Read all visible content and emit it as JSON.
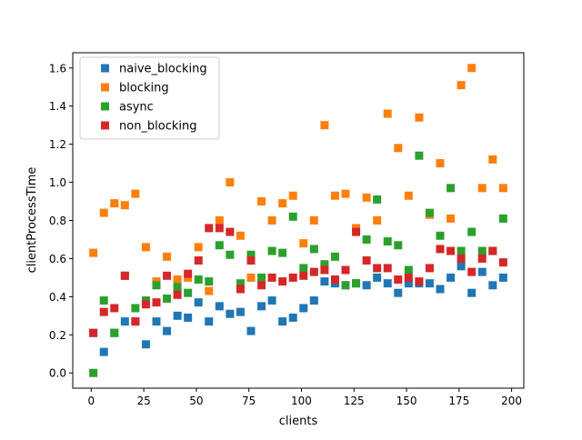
{
  "chart_data": {
    "type": "scatter",
    "xlabel": "clients",
    "ylabel": "clientProcessTime",
    "xlim": [
      -8.8,
      205.8
    ],
    "ylim": [
      -0.08,
      1.68
    ],
    "xticks": [
      0,
      25,
      50,
      75,
      100,
      125,
      150,
      175,
      200
    ],
    "yticks": [
      0.0,
      0.2,
      0.4,
      0.6,
      0.8,
      1.0,
      1.2,
      1.4,
      1.6
    ],
    "xtick_labels": [
      "0",
      "25",
      "50",
      "75",
      "100",
      "125",
      "150",
      "175",
      "200"
    ],
    "ytick_labels": [
      "0.0",
      "0.2",
      "0.4",
      "0.6",
      "0.8",
      "1.0",
      "1.2",
      "1.4",
      "1.6"
    ],
    "grid": false,
    "legend": {
      "placement": "top-left"
    },
    "x": [
      1,
      6,
      11,
      16,
      21,
      26,
      31,
      36,
      41,
      46,
      51,
      56,
      61,
      66,
      71,
      76,
      81,
      86,
      91,
      96,
      101,
      106,
      111,
      116,
      121,
      126,
      131,
      136,
      141,
      146,
      151,
      156,
      161,
      166,
      171,
      176,
      181,
      186,
      191,
      196
    ],
    "series": [
      {
        "name": "naive_blocking",
        "color": "#1f77b4",
        "values": [
          0.21,
          0.11,
          0.21,
          0.27,
          0.27,
          0.15,
          0.27,
          0.22,
          0.3,
          0.29,
          0.37,
          0.27,
          0.35,
          0.31,
          0.32,
          0.22,
          0.35,
          0.38,
          0.27,
          0.29,
          0.34,
          0.38,
          0.48,
          0.47,
          0.46,
          0.47,
          0.46,
          0.5,
          0.47,
          0.42,
          0.47,
          0.47,
          0.47,
          0.44,
          0.5,
          0.56,
          0.42,
          0.53,
          0.46,
          0.5
        ]
      },
      {
        "name": "blocking",
        "color": "#ff7f0e",
        "values": [
          0.63,
          0.84,
          0.89,
          0.88,
          0.94,
          0.66,
          0.48,
          0.61,
          0.49,
          0.5,
          0.66,
          0.43,
          0.8,
          1.0,
          0.72,
          0.5,
          0.9,
          0.8,
          0.89,
          0.93,
          0.68,
          0.8,
          1.3,
          0.93,
          0.94,
          0.76,
          0.92,
          0.8,
          1.36,
          1.18,
          0.93,
          1.34,
          0.83,
          1.1,
          0.81,
          1.51,
          1.6,
          0.97,
          1.12,
          0.97
        ]
      },
      {
        "name": "async",
        "color": "#2ca02c",
        "values": [
          0.0,
          0.38,
          0.21,
          0.51,
          0.34,
          0.38,
          0.46,
          0.39,
          0.45,
          0.42,
          0.49,
          0.48,
          0.67,
          0.62,
          0.47,
          0.62,
          0.5,
          0.64,
          0.63,
          0.82,
          0.55,
          0.65,
          0.57,
          0.61,
          0.46,
          0.47,
          0.7,
          0.91,
          0.69,
          0.67,
          0.54,
          1.14,
          0.84,
          0.72,
          0.97,
          0.64,
          0.74,
          0.64,
          0.64,
          0.81
        ]
      },
      {
        "name": "non_blocking",
        "color": "#d62728",
        "values": [
          0.21,
          0.32,
          0.34,
          0.51,
          0.27,
          0.36,
          0.37,
          0.51,
          0.41,
          0.52,
          0.59,
          0.76,
          0.76,
          0.74,
          0.44,
          0.59,
          0.46,
          0.5,
          0.48,
          0.5,
          0.51,
          0.53,
          0.54,
          0.49,
          0.54,
          0.74,
          0.59,
          0.55,
          0.55,
          0.49,
          0.5,
          0.48,
          0.55,
          0.65,
          0.64,
          0.6,
          0.53,
          0.6,
          0.64,
          0.58
        ]
      }
    ]
  }
}
